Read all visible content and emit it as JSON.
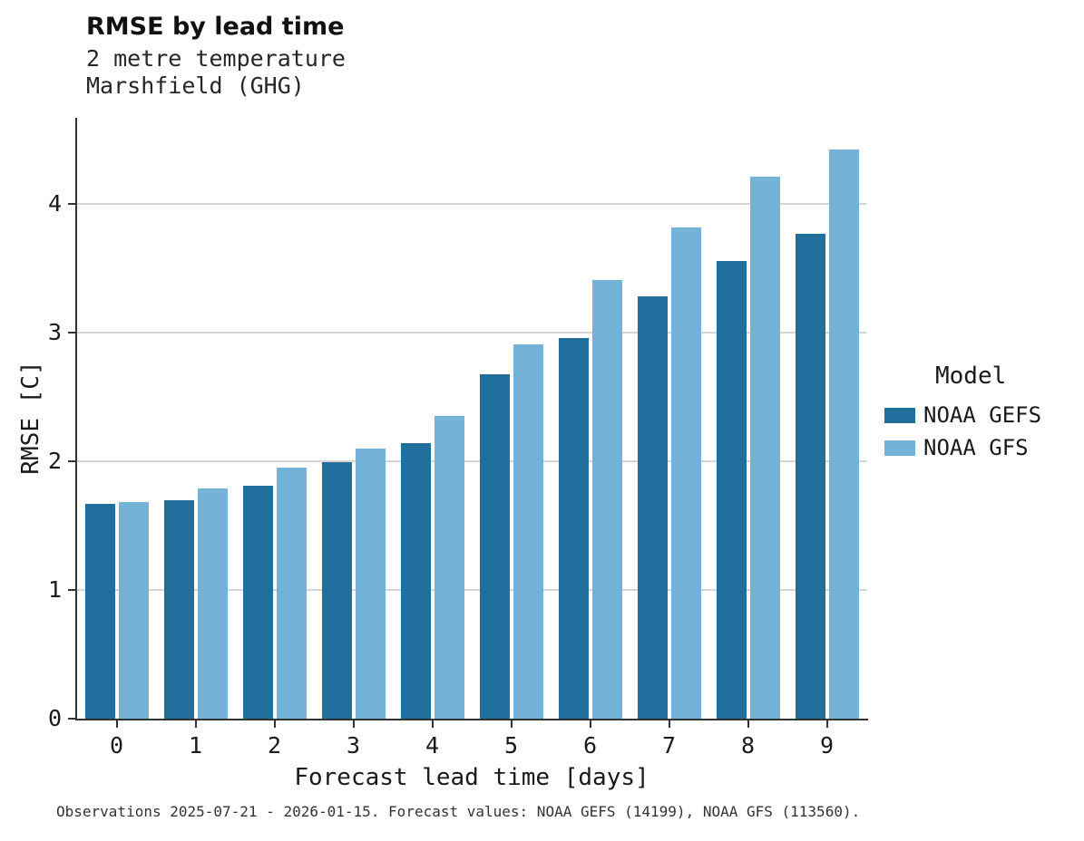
{
  "chart_data": {
    "type": "bar",
    "title": "RMSE by lead time",
    "subtitle_line1": "2 metre temperature",
    "subtitle_line2": "Marshfield (GHG)",
    "xlabel": "Forecast lead time [days]",
    "ylabel": "RMSE [C]",
    "categories": [
      "0",
      "1",
      "2",
      "3",
      "4",
      "5",
      "6",
      "7",
      "8",
      "9"
    ],
    "series": [
      {
        "name": "NOAA GEFS",
        "color": "#1f6e9c",
        "values": [
          1.67,
          1.7,
          1.81,
          1.99,
          2.14,
          2.68,
          2.96,
          3.28,
          3.56,
          3.77
        ]
      },
      {
        "name": "NOAA GFS",
        "color": "#74b2d8",
        "values": [
          1.68,
          1.79,
          1.95,
          2.1,
          2.35,
          2.91,
          3.41,
          3.82,
          4.21,
          4.42
        ]
      }
    ],
    "ylim": [
      0,
      4.67
    ],
    "yticks": [
      0,
      1,
      2,
      3,
      4
    ],
    "grid": "horizontal",
    "legend_title": "Model",
    "legend_position": "right",
    "caption": "Observations 2025-07-21 - 2026-01-15. Forecast values: NOAA GEFS (14199), NOAA GFS (113560)."
  }
}
